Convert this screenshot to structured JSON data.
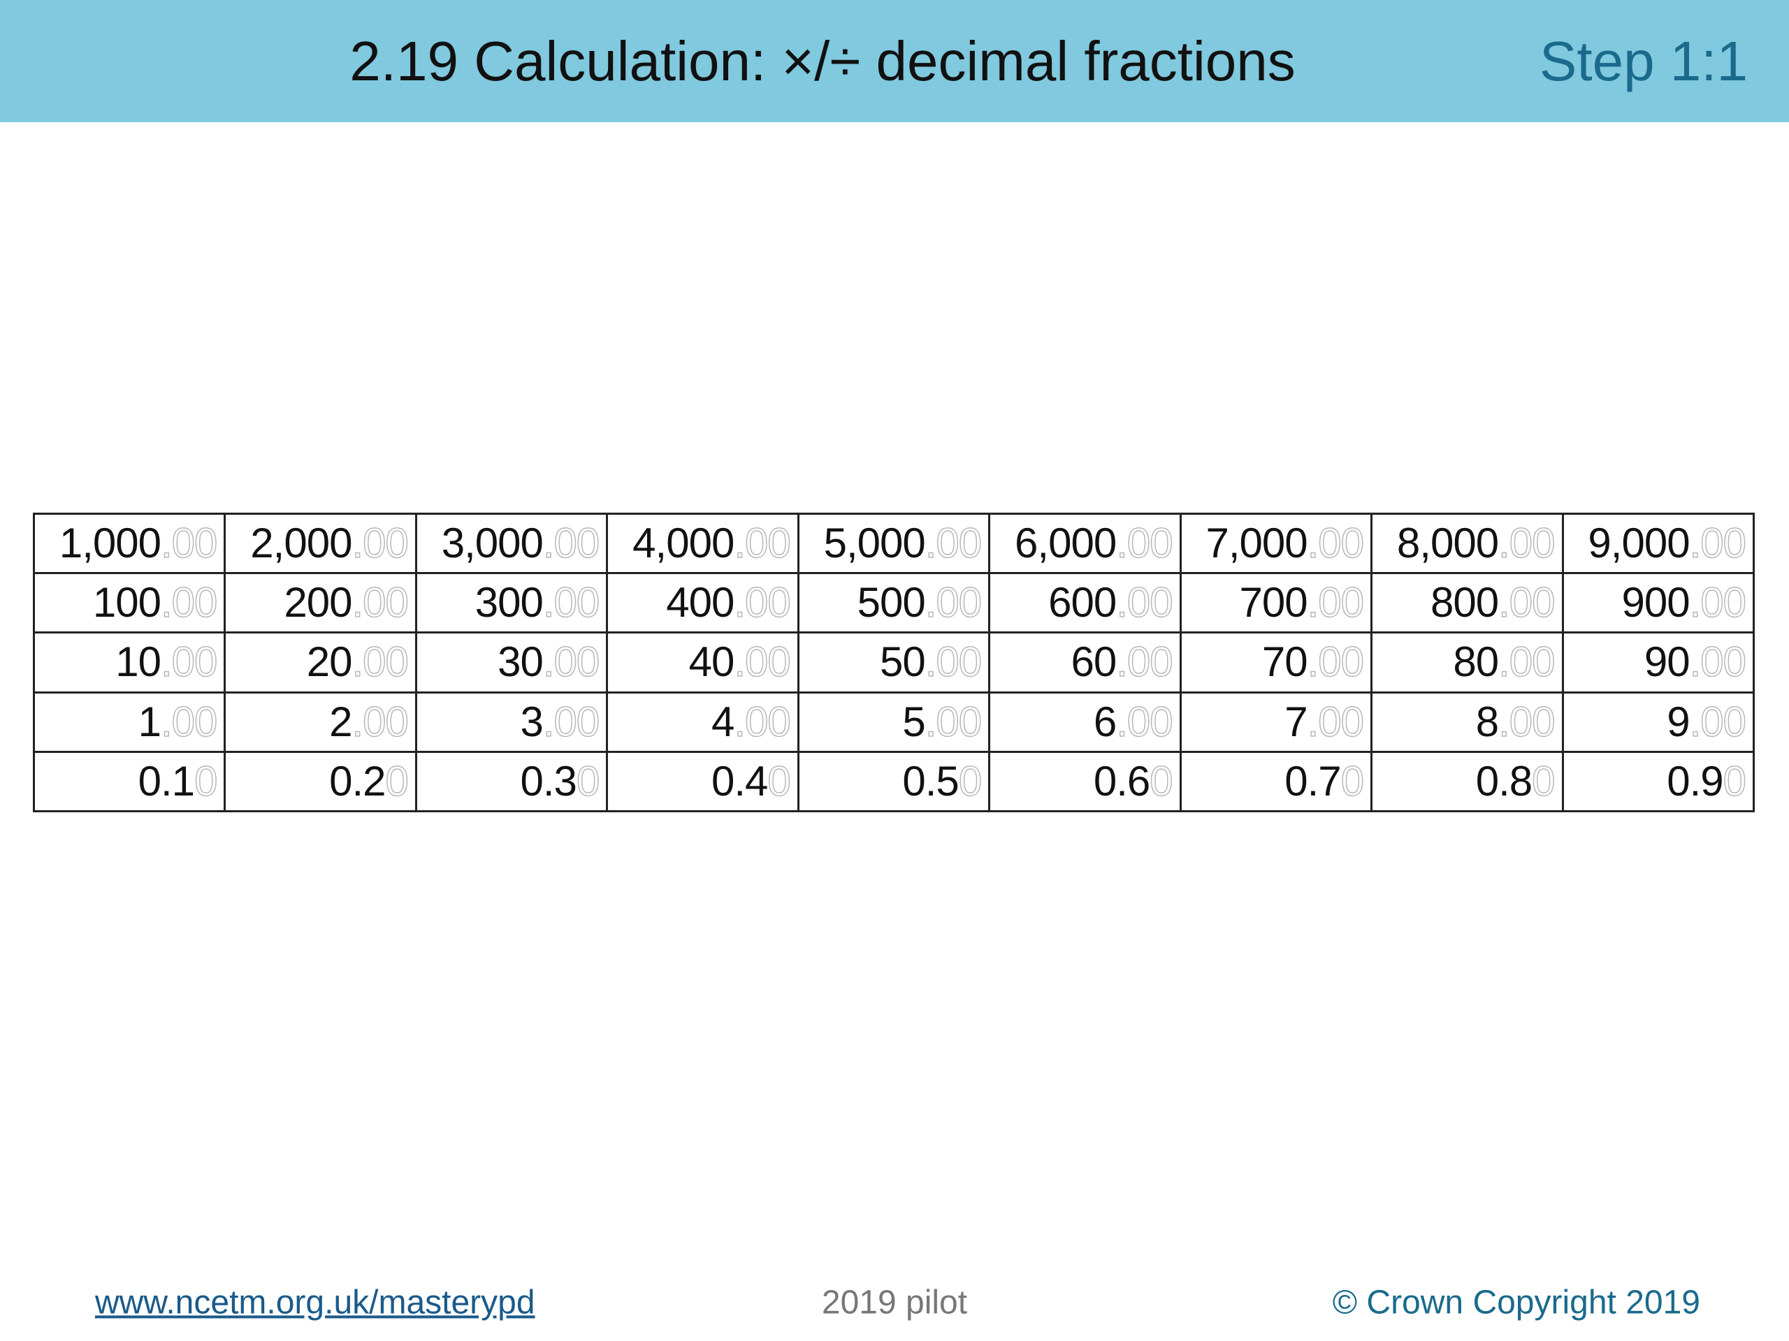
{
  "header": {
    "title": "2.19 Calculation: ×/÷ decimal fractions",
    "step": "Step 1:1"
  },
  "table": {
    "rows": [
      [
        {
          "main": "1,000",
          "faded": ".00"
        },
        {
          "main": "2,000",
          "faded": ".00"
        },
        {
          "main": "3,000",
          "faded": ".00"
        },
        {
          "main": "4,000",
          "faded": ".00"
        },
        {
          "main": "5,000",
          "faded": ".00"
        },
        {
          "main": "6,000",
          "faded": ".00"
        },
        {
          "main": "7,000",
          "faded": ".00"
        },
        {
          "main": "8,000",
          "faded": ".00"
        },
        {
          "main": "9,000",
          "faded": ".00"
        }
      ],
      [
        {
          "main": "100",
          "faded": ".00"
        },
        {
          "main": "200",
          "faded": ".00"
        },
        {
          "main": "300",
          "faded": ".00"
        },
        {
          "main": "400",
          "faded": ".00"
        },
        {
          "main": "500",
          "faded": ".00"
        },
        {
          "main": "600",
          "faded": ".00"
        },
        {
          "main": "700",
          "faded": ".00"
        },
        {
          "main": "800",
          "faded": ".00"
        },
        {
          "main": "900",
          "faded": ".00"
        }
      ],
      [
        {
          "main": "10",
          "faded": ".00"
        },
        {
          "main": "20",
          "faded": ".00"
        },
        {
          "main": "30",
          "faded": ".00"
        },
        {
          "main": "40",
          "faded": ".00"
        },
        {
          "main": "50",
          "faded": ".00"
        },
        {
          "main": "60",
          "faded": ".00"
        },
        {
          "main": "70",
          "faded": ".00"
        },
        {
          "main": "80",
          "faded": ".00"
        },
        {
          "main": "90",
          "faded": ".00"
        }
      ],
      [
        {
          "main": "1",
          "faded": ".00"
        },
        {
          "main": "2",
          "faded": ".00"
        },
        {
          "main": "3",
          "faded": ".00"
        },
        {
          "main": "4",
          "faded": ".00"
        },
        {
          "main": "5",
          "faded": ".00"
        },
        {
          "main": "6",
          "faded": ".00"
        },
        {
          "main": "7",
          "faded": ".00"
        },
        {
          "main": "8",
          "faded": ".00"
        },
        {
          "main": "9",
          "faded": ".00"
        }
      ],
      [
        {
          "main": "0.1",
          "faded": "0"
        },
        {
          "main": "0.2",
          "faded": "0"
        },
        {
          "main": "0.3",
          "faded": "0"
        },
        {
          "main": "0.4",
          "faded": "0"
        },
        {
          "main": "0.5",
          "faded": "0"
        },
        {
          "main": "0.6",
          "faded": "0"
        },
        {
          "main": "0.7",
          "faded": "0"
        },
        {
          "main": "0.8",
          "faded": "0"
        },
        {
          "main": "0.9",
          "faded": "0"
        }
      ]
    ]
  },
  "footer": {
    "link": "www.ncetm.org.uk/masterypd",
    "pilot": "2019 pilot",
    "copyright": "© Crown Copyright 2019"
  }
}
